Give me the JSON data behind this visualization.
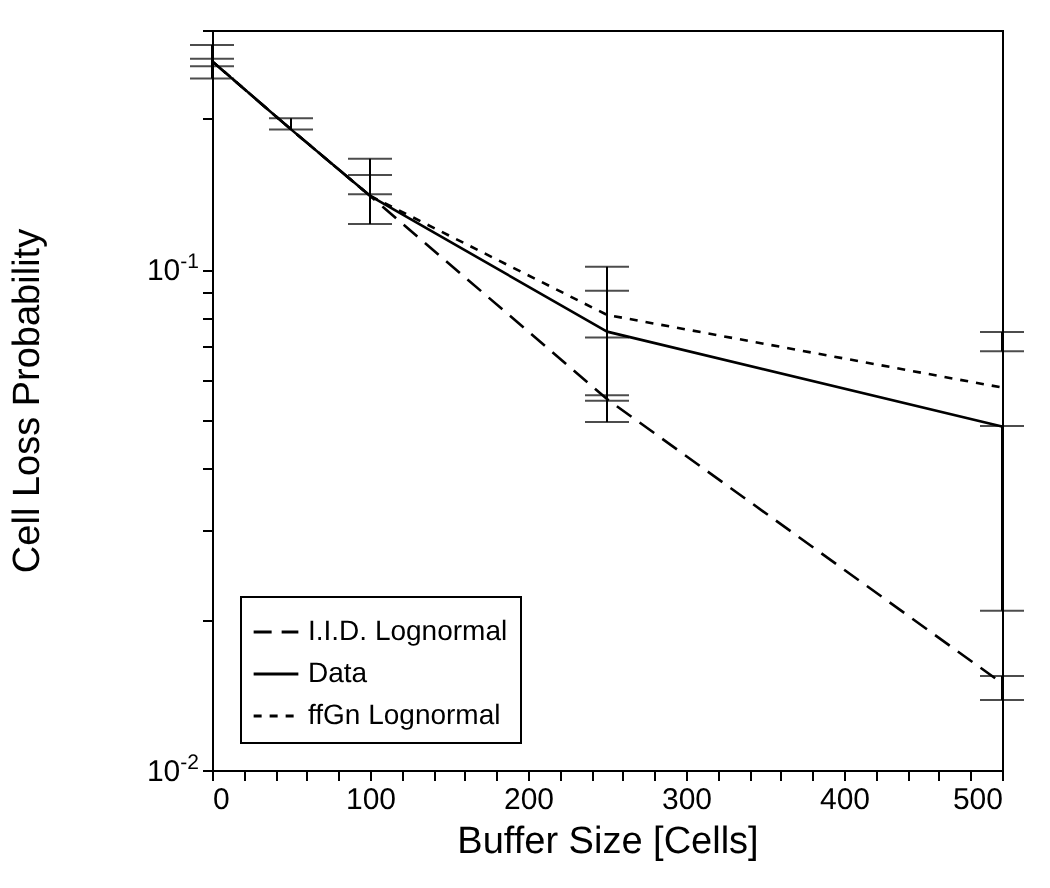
{
  "chart_data": {
    "type": "line",
    "xlabel": "Buffer Size [Cells]",
    "ylabel": "Cell Loss Probability",
    "log": "y",
    "x": [
      0,
      50,
      100,
      250,
      500
    ],
    "xlim": [
      0,
      500
    ],
    "xticks": [
      0,
      {
        "value": 20,
        "label": null
      },
      {
        "value": 40,
        "label": null
      },
      {
        "value": 60,
        "label": null
      },
      {
        "value": 80,
        "label": null
      },
      100,
      {
        "value": 120,
        "label": null
      },
      {
        "value": 140,
        "label": null
      },
      {
        "value": 160,
        "label": null
      },
      {
        "value": 180,
        "label": null
      },
      200,
      {
        "value": 220,
        "label": null
      },
      {
        "value": 240,
        "label": null
      },
      {
        "value": 260,
        "label": null
      },
      {
        "value": 280,
        "label": null
      },
      300,
      {
        "value": 320,
        "label": null
      },
      {
        "value": 340,
        "label": null
      },
      {
        "value": 360,
        "label": null
      },
      {
        "value": 380,
        "label": null
      },
      400,
      {
        "value": 420,
        "label": null
      },
      {
        "value": 440,
        "label": null
      },
      {
        "value": 460,
        "label": null
      },
      {
        "value": 480,
        "label": null
      },
      500
    ],
    "ylim": [
      0.01,
      0.3
    ],
    "yticks": [
      {
        "value": 0.01,
        "label": "10$^{-2}$"
      },
      {
        "value": 0.02,
        "label": null
      },
      {
        "value": 0.03,
        "label": null
      },
      {
        "value": 0.04,
        "label": null
      },
      {
        "value": 0.05,
        "label": null
      },
      {
        "value": 0.06,
        "label": null
      },
      {
        "value": 0.07,
        "label": null
      },
      {
        "value": 0.08,
        "label": null
      },
      {
        "value": 0.09,
        "label": null
      },
      {
        "value": 0.1,
        "label": "10$^{-1}$"
      },
      {
        "value": 0.2,
        "label": null
      },
      {
        "value": 0.3,
        "label": null
      }
    ],
    "grid": false,
    "legend": "bottom left",
    "marker": "none",
    "series": [
      {
        "name": "I.I.D. Lognormal",
        "color": "#000000",
        "line_style": "dashed",
        "values": [
          0.26,
          0.19,
          0.14,
          0.055,
          0.0149
        ],
        "errors": [
          null,
          null,
          null,
          [
            0.0546,
            0.056
          ],
          [
            0.0138,
            0.0154
          ]
        ]
      },
      {
        "name": "Data",
        "color": "#000000",
        "line_style": "solid",
        "values": [
          0.26,
          0.19,
          0.14,
          0.075,
          0.0485
        ],
        "errors": [
          [
            0.24,
            0.28
          ],
          [
            0.19,
            0.2
          ],
          [
            0.123,
            0.166
          ],
          [
            0.0495,
            0.101
          ],
          [
            0.0208,
            0.0486
          ]
        ]
      },
      {
        "name": "ffGn Lognormal",
        "color": "#000000",
        "line_style": "dotted",
        "values": [
          0.26,
          0.19,
          0.14,
          0.081,
          0.058
        ],
        "errors": [
          [
            0.254,
            0.263
          ],
          null,
          [
            0.141,
            0.154
          ],
          [
            0.073,
            0.0905
          ],
          [
            0.0685,
            0.0749
          ]
        ]
      }
    ]
  }
}
